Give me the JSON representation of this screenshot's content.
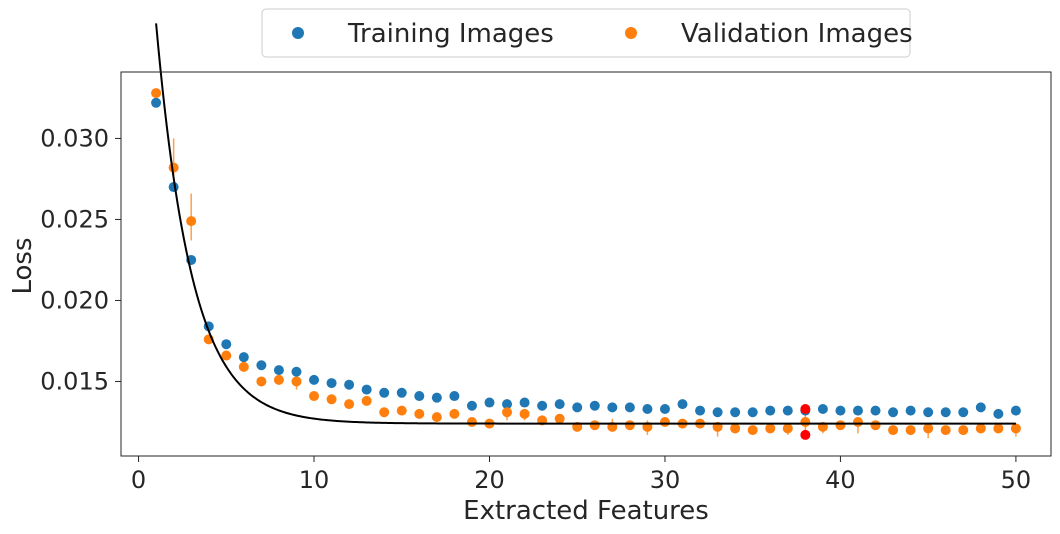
{
  "chart_data": {
    "type": "scatter",
    "xlabel": "Extracted Features",
    "ylabel": "Loss",
    "xlim": [
      -1,
      52
    ],
    "ylim": [
      0.0104,
      0.0341
    ],
    "x_ticks": [
      "0",
      "10",
      "20",
      "30",
      "40",
      "50"
    ],
    "y_ticks": [
      "0.015",
      "0.020",
      "0.025",
      "0.030"
    ],
    "grid": false,
    "legend": {
      "placement": "top-center, above plot",
      "entries": [
        "Training Images",
        "Validation Images"
      ]
    },
    "series": [
      {
        "name": "Training Images",
        "color": "#1f77b4",
        "x": [
          1,
          2,
          3,
          4,
          5,
          6,
          7,
          8,
          9,
          10,
          11,
          12,
          13,
          14,
          15,
          16,
          17,
          18,
          19,
          20,
          21,
          22,
          23,
          24,
          25,
          26,
          27,
          28,
          29,
          30,
          31,
          32,
          33,
          34,
          35,
          36,
          37,
          38,
          39,
          40,
          41,
          42,
          43,
          44,
          45,
          46,
          47,
          48,
          49,
          50
        ],
        "y": [
          0.0322,
          0.027,
          0.0225,
          0.0184,
          0.0173,
          0.0165,
          0.016,
          0.0157,
          0.0156,
          0.0151,
          0.0149,
          0.0148,
          0.0145,
          0.0143,
          0.0143,
          0.0141,
          0.014,
          0.0141,
          0.0135,
          0.0137,
          0.0136,
          0.0137,
          0.0135,
          0.0136,
          0.0134,
          0.0135,
          0.0134,
          0.0134,
          0.0133,
          0.0133,
          0.0136,
          0.0132,
          0.0131,
          0.0131,
          0.0131,
          0.0132,
          0.0132,
          0.0132,
          0.0133,
          0.0132,
          0.0132,
          0.0132,
          0.0131,
          0.0132,
          0.0131,
          0.0131,
          0.0131,
          0.0134,
          0.013,
          0.0132
        ]
      },
      {
        "name": "Validation Images",
        "color": "#ff7f0e",
        "x": [
          1,
          2,
          3,
          4,
          5,
          6,
          7,
          8,
          9,
          10,
          11,
          12,
          13,
          14,
          15,
          16,
          17,
          18,
          19,
          20,
          21,
          22,
          23,
          24,
          25,
          26,
          27,
          28,
          29,
          30,
          31,
          32,
          33,
          34,
          35,
          36,
          37,
          38,
          39,
          40,
          41,
          42,
          43,
          44,
          45,
          46,
          47,
          48,
          49,
          50
        ],
        "y": [
          0.0328,
          0.0282,
          0.0249,
          0.0176,
          0.0166,
          0.0159,
          0.015,
          0.0151,
          0.015,
          0.0141,
          0.0139,
          0.0136,
          0.0138,
          0.0131,
          0.0132,
          0.013,
          0.0128,
          0.013,
          0.0125,
          0.0124,
          0.0131,
          0.013,
          0.0126,
          0.0127,
          0.0122,
          0.0123,
          0.0122,
          0.0123,
          0.0122,
          0.0125,
          0.0124,
          0.0124,
          0.0122,
          0.0121,
          0.012,
          0.0121,
          0.0121,
          0.0125,
          0.0122,
          0.0123,
          0.0125,
          0.0123,
          0.012,
          0.012,
          0.0121,
          0.012,
          0.012,
          0.0121,
          0.0121,
          0.0121
        ],
        "error_low": [
          0.0327,
          0.0275,
          0.0237,
          0.0175,
          0.0164,
          0.0157,
          0.0149,
          0.0148,
          0.0145,
          0.0139,
          0.0137,
          0.0134,
          0.0136,
          0.0129,
          0.013,
          0.0128,
          0.0126,
          0.0128,
          0.0123,
          0.0123,
          0.0126,
          0.0126,
          0.0124,
          0.0124,
          0.0121,
          0.0121,
          0.0121,
          0.0121,
          0.0117,
          0.0123,
          0.0123,
          0.0122,
          0.0116,
          0.0119,
          0.0118,
          0.0119,
          0.0117,
          0.0118,
          0.0118,
          0.0122,
          0.0118,
          0.0121,
          0.0119,
          0.0119,
          0.0115,
          0.0118,
          0.0119,
          0.0119,
          0.0119,
          0.0116
        ],
        "error_high": [
          0.033,
          0.03,
          0.0266,
          0.0178,
          0.0168,
          0.0161,
          0.0151,
          0.0154,
          0.0153,
          0.0143,
          0.0141,
          0.0138,
          0.014,
          0.0133,
          0.0134,
          0.0132,
          0.013,
          0.0132,
          0.0127,
          0.0125,
          0.0133,
          0.0131,
          0.0128,
          0.0129,
          0.0124,
          0.0125,
          0.0127,
          0.0125,
          0.0126,
          0.0127,
          0.0125,
          0.0126,
          0.0124,
          0.0123,
          0.0122,
          0.0123,
          0.0124,
          0.0133,
          0.0124,
          0.0124,
          0.0126,
          0.0125,
          0.0122,
          0.0122,
          0.0123,
          0.0122,
          0.0122,
          0.0123,
          0.0123,
          0.0123
        ]
      }
    ],
    "highlight_points": {
      "color": "#ff0000",
      "x": [
        38,
        38
      ],
      "y": [
        0.0133,
        0.0117
      ]
    },
    "fit_curve": {
      "color": "#000000",
      "equation": "y = 0.0124 + 0.0247*exp(-(x-1)/2.05)",
      "asymptote": 0.0124,
      "amplitude": 0.0247,
      "x0": 1,
      "tau": 2.05,
      "x_range": [
        1,
        50
      ]
    }
  }
}
